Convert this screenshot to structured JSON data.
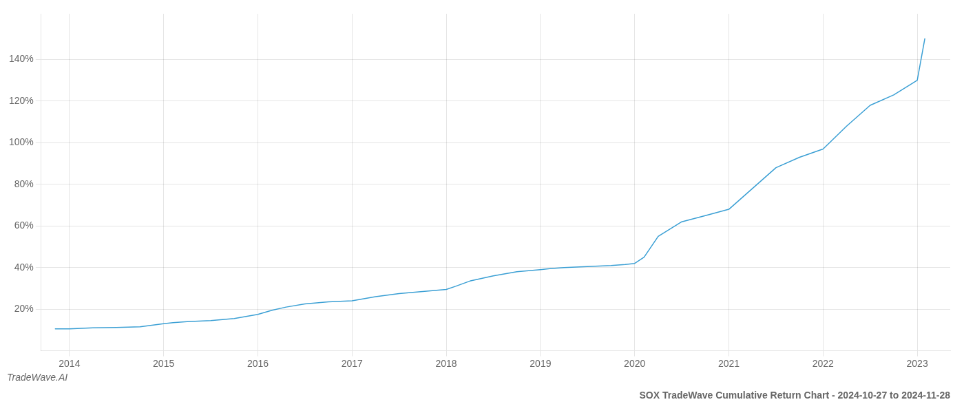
{
  "chart_data": {
    "type": "line",
    "title": "SOX TradeWave Cumulative Return Chart - 2024-10-27 to 2024-11-28",
    "annotations": [
      "TradeWave.AI"
    ],
    "x": [
      2013.85,
      2014.0,
      2014.25,
      2014.5,
      2014.75,
      2015.0,
      2015.1,
      2015.25,
      2015.5,
      2015.75,
      2016.0,
      2016.15,
      2016.3,
      2016.5,
      2016.75,
      2017.0,
      2017.25,
      2017.5,
      2017.75,
      2018.0,
      2018.1,
      2018.25,
      2018.5,
      2018.75,
      2019.0,
      2019.1,
      2019.25,
      2019.5,
      2019.75,
      2019.9,
      2020.0,
      2020.1,
      2020.25,
      2020.5,
      2020.75,
      2021.0,
      2021.25,
      2021.5,
      2021.75,
      2022.0,
      2022.25,
      2022.5,
      2022.75,
      2023.0,
      2023.08
    ],
    "values": [
      10.5,
      10.5,
      11.0,
      11.2,
      11.5,
      13.0,
      13.5,
      14.0,
      14.5,
      15.5,
      17.5,
      19.5,
      21.0,
      22.5,
      23.5,
      24.0,
      26.0,
      27.5,
      28.5,
      29.5,
      31.0,
      33.5,
      36.0,
      38.0,
      39.0,
      39.5,
      40.0,
      40.5,
      41.0,
      41.5,
      42.0,
      45.0,
      55.0,
      62.0,
      65.0,
      68.0,
      78.0,
      88.0,
      93.0,
      97.0,
      108.0,
      118.0,
      123.0,
      130.0,
      150.0
    ],
    "color": "#3a9fd4",
    "xlim": [
      2013.7,
      2023.35
    ],
    "xticks": [
      2014,
      2015,
      2016,
      2017,
      2018,
      2019,
      2020,
      2021,
      2022,
      2023
    ],
    "ylim": [
      0,
      162
    ],
    "yticks": [
      {
        "value": 20,
        "label": "20%"
      },
      {
        "value": 40,
        "label": "40%"
      },
      {
        "value": 60,
        "label": "60%"
      },
      {
        "value": 80,
        "label": "80%"
      },
      {
        "value": 100,
        "label": "100%"
      },
      {
        "value": 120,
        "label": "120%"
      },
      {
        "value": 140,
        "label": "140%"
      }
    ],
    "grid": true
  }
}
